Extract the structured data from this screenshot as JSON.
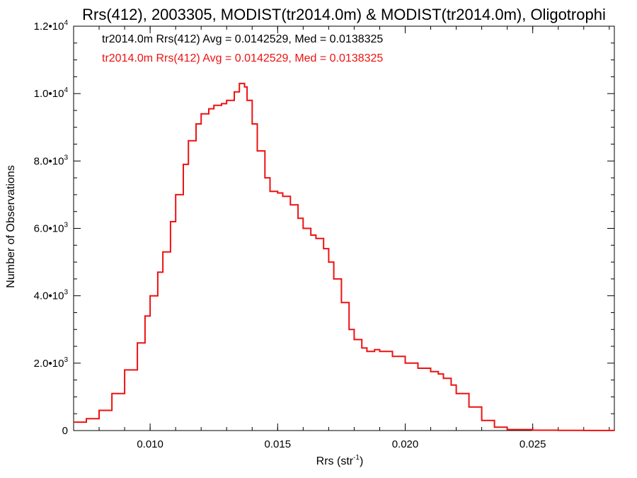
{
  "chart_data": {
    "type": "line",
    "title": "Rrs(412), 2003305, MODIST(tr2014.0m) & MODIST(tr2014.0m), Oligotrophi",
    "xlabel": "Rrs (str",
    "xlabel_sup": "-1",
    "xlabel_close": ")",
    "ylabel": "Number of Observations",
    "xlim": [
      0.007,
      0.0282
    ],
    "ylim": [
      0,
      12000
    ],
    "x_ticks": [
      {
        "value": 0.01,
        "label": "0.010"
      },
      {
        "value": 0.015,
        "label": "0.015"
      },
      {
        "value": 0.02,
        "label": "0.020"
      },
      {
        "value": 0.025,
        "label": "0.025"
      }
    ],
    "y_ticks": [
      {
        "value": 0,
        "label": "0",
        "sup": ""
      },
      {
        "value": 2000,
        "label": "2.0•10",
        "sup": "3"
      },
      {
        "value": 4000,
        "label": "4.0•10",
        "sup": "3"
      },
      {
        "value": 6000,
        "label": "6.0•10",
        "sup": "3"
      },
      {
        "value": 8000,
        "label": "8.0•10",
        "sup": "3"
      },
      {
        "value": 10000,
        "label": "1.0•10",
        "sup": "4"
      },
      {
        "value": 12000,
        "label": "1.2•10",
        "sup": "4"
      }
    ],
    "annotations": [
      {
        "text": "tr2014.0m Rrs(412) Avg = 0.0142529, Med = 0.0138325",
        "color": "#000000"
      },
      {
        "text": "tr2014.0m Rrs(412) Avg = 0.0142529, Med = 0.0138325",
        "color": "#ee1111"
      }
    ],
    "series": [
      {
        "color": "#ee1111",
        "x": [
          0.007,
          0.0075,
          0.008,
          0.0085,
          0.009,
          0.0095,
          0.0098,
          0.01,
          0.0103,
          0.0105,
          0.0108,
          0.011,
          0.0113,
          0.0115,
          0.0118,
          0.012,
          0.0123,
          0.0125,
          0.0128,
          0.013,
          0.0133,
          0.0135,
          0.0137,
          0.0138,
          0.014,
          0.0142,
          0.0145,
          0.0147,
          0.015,
          0.0152,
          0.0155,
          0.0158,
          0.016,
          0.0163,
          0.0165,
          0.0168,
          0.017,
          0.0172,
          0.0175,
          0.0178,
          0.018,
          0.0183,
          0.0185,
          0.0188,
          0.019,
          0.0195,
          0.02,
          0.0205,
          0.021,
          0.0213,
          0.0215,
          0.0218,
          0.022,
          0.0225,
          0.023,
          0.0235,
          0.024,
          0.025,
          0.026,
          0.027,
          0.0282
        ],
        "y": [
          250,
          350,
          600,
          1100,
          1800,
          2600,
          3400,
          4000,
          4700,
          5300,
          6200,
          7000,
          7900,
          8600,
          9100,
          9400,
          9550,
          9650,
          9700,
          9800,
          10050,
          10300,
          10200,
          9800,
          9100,
          8300,
          7500,
          7100,
          7050,
          6950,
          6700,
          6300,
          6000,
          5800,
          5700,
          5400,
          5000,
          4500,
          3800,
          3000,
          2700,
          2450,
          2350,
          2400,
          2350,
          2200,
          2000,
          1850,
          1750,
          1680,
          1550,
          1350,
          1100,
          700,
          300,
          100,
          30,
          10,
          5,
          2,
          1
        ]
      }
    ]
  }
}
